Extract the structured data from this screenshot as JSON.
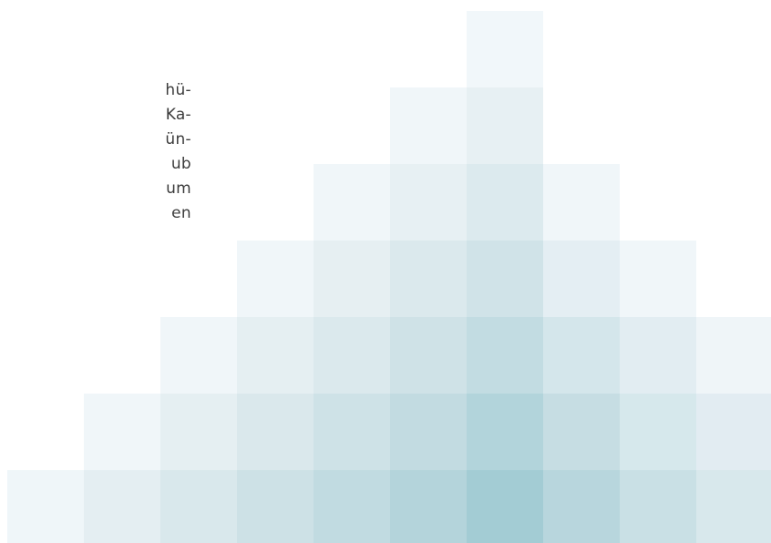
{
  "text_lines": [
    "hü-",
    "Ka-",
    "ün-",
    "ub",
    "um",
    "en"
  ],
  "pyramid": {
    "tile_rows": [
      {
        "row": 0,
        "tiles": [
          {
            "col": 6,
            "color": "#f1f7fa"
          }
        ]
      },
      {
        "row": 1,
        "tiles": [
          {
            "col": 5,
            "color": "#f0f6f9"
          },
          {
            "col": 6,
            "color": "#e7f0f3"
          }
        ]
      },
      {
        "row": 2,
        "tiles": [
          {
            "col": 4,
            "color": "#f0f6f9"
          },
          {
            "col": 5,
            "color": "#e7f0f3"
          },
          {
            "col": 6,
            "color": "#dceaee"
          },
          {
            "col": 7,
            "color": "#f0f6f9"
          }
        ]
      },
      {
        "row": 3,
        "tiles": [
          {
            "col": 3,
            "color": "#f0f6f9"
          },
          {
            "col": 4,
            "color": "#e6eff2"
          },
          {
            "col": 5,
            "color": "#dbe9ed"
          },
          {
            "col": 6,
            "color": "#d0e3e8"
          },
          {
            "col": 7,
            "color": "#e4eef3"
          },
          {
            "col": 8,
            "color": "#f0f6f9"
          }
        ]
      },
      {
        "row": 4,
        "tiles": [
          {
            "col": 2,
            "color": "#f0f6f9"
          },
          {
            "col": 3,
            "color": "#e5eff2"
          },
          {
            "col": 4,
            "color": "#dbe9ed"
          },
          {
            "col": 5,
            "color": "#cfe2e7"
          },
          {
            "col": 6,
            "color": "#c2dce2"
          },
          {
            "col": 7,
            "color": "#d4e6eb"
          },
          {
            "col": 8,
            "color": "#e2edf2"
          },
          {
            "col": 9,
            "color": "#eff5f8"
          }
        ]
      },
      {
        "row": 5,
        "tiles": [
          {
            "col": 1,
            "color": "#f0f6f9"
          },
          {
            "col": 2,
            "color": "#e5eff2"
          },
          {
            "col": 3,
            "color": "#dae8ec"
          },
          {
            "col": 4,
            "color": "#cee2e7"
          },
          {
            "col": 5,
            "color": "#c2dbe1"
          },
          {
            "col": 6,
            "color": "#b2d4db"
          },
          {
            "col": 7,
            "color": "#c6dde3"
          },
          {
            "col": 8,
            "color": "#d6e8ec"
          },
          {
            "col": 9,
            "color": "#e2ecf2"
          }
        ]
      },
      {
        "row": 6,
        "tiles": [
          {
            "col": 0,
            "color": "#eff6f9"
          },
          {
            "col": 1,
            "color": "#e4eef2"
          },
          {
            "col": 2,
            "color": "#d9e8ec"
          },
          {
            "col": 3,
            "color": "#cde1e6"
          },
          {
            "col": 4,
            "color": "#c1dbe1"
          },
          {
            "col": 5,
            "color": "#b4d4db"
          },
          {
            "col": 6,
            "color": "#a3ccd4"
          },
          {
            "col": 7,
            "color": "#b8d6dd"
          },
          {
            "col": 8,
            "color": "#c9e0e5"
          },
          {
            "col": 9,
            "color": "#d8e8ec"
          }
        ]
      }
    ]
  }
}
